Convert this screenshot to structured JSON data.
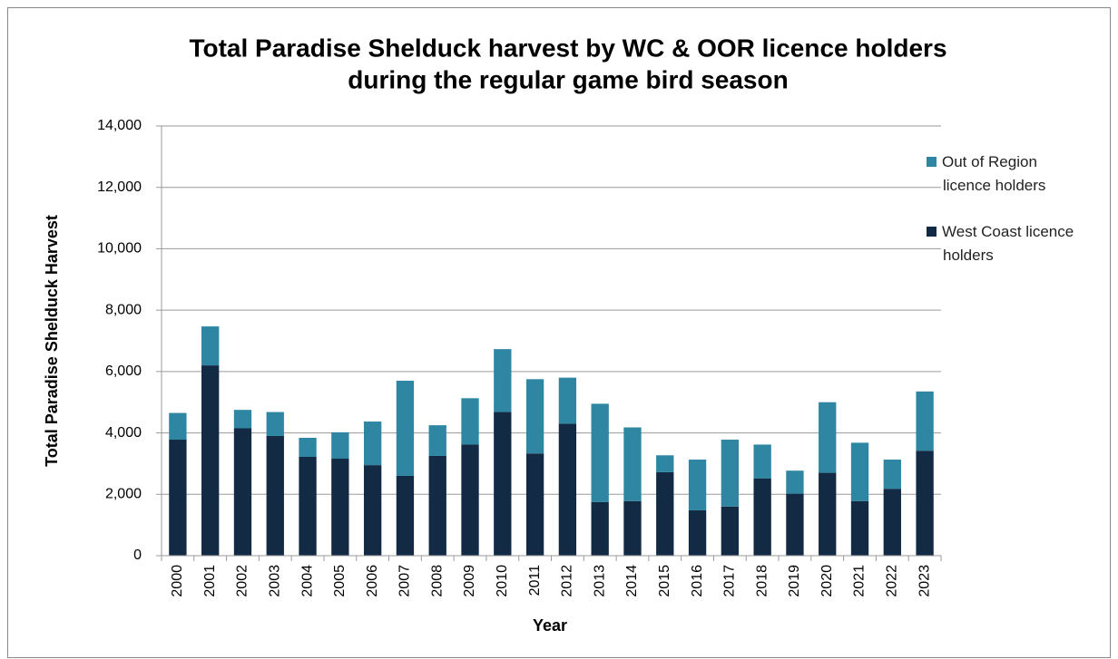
{
  "chart_data": {
    "type": "stacked_bar",
    "title": [
      "Total Paradise Shelduck harvest by WC & OOR licence holders",
      "during the regular game bird season"
    ],
    "x_label": "Year",
    "y_label": "Total Paradise Shelduck Harvest",
    "categories": [
      "2000",
      "2001",
      "2002",
      "2003",
      "2004",
      "2005",
      "2006",
      "2007",
      "2008",
      "2009",
      "2010",
      "2011",
      "2012",
      "2013",
      "2014",
      "2015",
      "2016",
      "2017",
      "2018",
      "2019",
      "2020",
      "2021",
      "2022",
      "2023"
    ],
    "series": [
      {
        "name": "West Coast licence holders",
        "color": "#132a45",
        "values": [
          3780,
          6200,
          4150,
          3900,
          3220,
          3160,
          2950,
          2600,
          3250,
          3620,
          4680,
          3330,
          4300,
          1750,
          1780,
          2720,
          1480,
          1600,
          2520,
          2020,
          2700,
          1780,
          2180,
          3420
        ]
      },
      {
        "name": "Out of Region licence holders",
        "color": "#2e86a3",
        "values": [
          870,
          1270,
          600,
          780,
          620,
          860,
          1420,
          3100,
          1000,
          1510,
          2050,
          2420,
          1500,
          3200,
          2400,
          550,
          1650,
          2180,
          1100,
          750,
          2300,
          1900,
          950,
          1930
        ]
      }
    ],
    "ylim": [
      0,
      14000
    ],
    "yticks": [
      0,
      {
        "value": 2000,
        "label": "2,000"
      },
      {
        "value": 4000,
        "label": "4,000"
      },
      {
        "value": 6000,
        "label": "6,000"
      },
      {
        "value": 8000,
        "label": "8,000"
      },
      {
        "value": 10000,
        "label": "10,000"
      },
      {
        "value": 12000,
        "label": "12,000"
      },
      {
        "value": 14000,
        "label": "14,000"
      }
    ],
    "grid": true,
    "legend": "right"
  }
}
